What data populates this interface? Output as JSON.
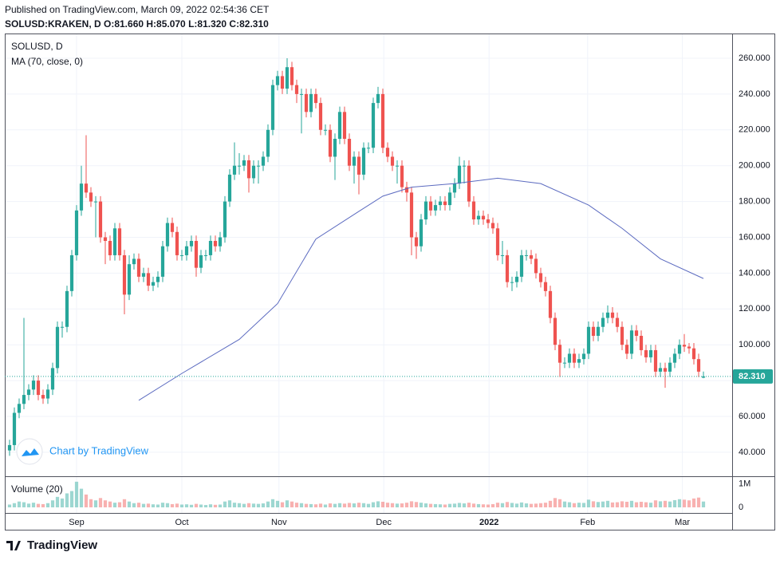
{
  "header": {
    "published": "Published on TradingView.com, March 09, 2022 02:54:36 CET",
    "quote": "SOLUSD:KRAKEN, D  O:81.660 H:85.070 L:81.320 C:82.310"
  },
  "footer": {
    "brand": "TradingView"
  },
  "watermark": "Chart by TradingView",
  "chart_data": {
    "type": "candlestick",
    "title": "SOLUSD, D",
    "up_color": "#26a69a",
    "down_color": "#ef5350",
    "open": [
      41,
      44,
      62,
      67,
      72,
      75,
      80,
      72,
      70,
      75,
      87,
      110,
      110,
      130,
      150,
      175,
      190,
      185,
      180,
      180,
      160,
      158,
      150,
      165,
      150,
      128,
      145,
      148,
      138,
      140,
      133,
      135,
      138,
      155,
      168,
      163,
      150,
      150,
      155,
      158,
      143,
      150,
      150,
      158,
      155,
      160,
      180,
      195,
      200,
      200,
      203,
      193,
      200,
      200,
      205,
      220,
      245,
      250,
      243,
      255,
      245,
      240,
      240,
      230,
      240,
      235,
      220,
      220,
      205,
      215,
      230,
      215,
      200,
      205,
      195,
      210,
      210,
      235,
      240,
      210,
      205,
      200,
      200,
      188,
      185,
      160,
      155,
      170,
      180,
      175,
      178,
      180,
      178,
      185,
      190,
      200,
      200,
      180,
      170,
      172,
      170,
      168,
      165,
      150,
      150,
      135,
      135,
      138,
      150,
      150,
      148,
      140,
      135,
      130,
      115,
      100,
      90,
      90,
      95,
      90,
      92,
      95,
      110,
      105,
      110,
      115,
      118,
      115,
      110,
      100,
      95,
      108,
      105,
      97,
      93,
      97,
      85,
      87,
      85,
      90,
      95,
      100,
      99,
      98,
      92,
      81.66
    ],
    "high": [
      47,
      65,
      70,
      115,
      78,
      83,
      83,
      75,
      78,
      90,
      113,
      113,
      133,
      153,
      178,
      200,
      217,
      188,
      183,
      183,
      163,
      161,
      168,
      168,
      153,
      150,
      151,
      151,
      143,
      143,
      138,
      141,
      158,
      171,
      171,
      166,
      153,
      158,
      161,
      161,
      153,
      153,
      161,
      161,
      163,
      183,
      198,
      213,
      207,
      206,
      206,
      203,
      203,
      208,
      223,
      248,
      253,
      253,
      260,
      258,
      248,
      243,
      243,
      243,
      243,
      238,
      223,
      223,
      218,
      233,
      233,
      218,
      208,
      208,
      213,
      213,
      238,
      244,
      243,
      213,
      208,
      203,
      203,
      191,
      188,
      163,
      173,
      183,
      183,
      181,
      183,
      183,
      188,
      193,
      205,
      203,
      203,
      183,
      175,
      175,
      173,
      171,
      168,
      158,
      153,
      138,
      141,
      153,
      153,
      153,
      151,
      143,
      138,
      133,
      118,
      103,
      93,
      98,
      98,
      95,
      98,
      113,
      113,
      113,
      118,
      122,
      121,
      118,
      113,
      103,
      111,
      111,
      108,
      100,
      100,
      100,
      90,
      90,
      93,
      98,
      103,
      106,
      101,
      101,
      95,
      85.07
    ],
    "low": [
      38,
      41,
      59,
      64,
      69,
      72,
      69,
      67,
      67,
      72,
      84,
      104,
      107,
      127,
      147,
      172,
      182,
      177,
      160,
      157,
      145,
      147,
      147,
      147,
      117,
      125,
      142,
      135,
      135,
      130,
      130,
      132,
      135,
      152,
      160,
      147,
      147,
      147,
      152,
      138,
      140,
      147,
      147,
      152,
      152,
      157,
      177,
      192,
      195,
      197,
      185,
      190,
      190,
      197,
      202,
      217,
      242,
      240,
      240,
      242,
      235,
      218,
      227,
      227,
      232,
      217,
      217,
      202,
      192,
      212,
      212,
      197,
      190,
      184,
      192,
      207,
      207,
      232,
      207,
      202,
      197,
      190,
      185,
      180,
      150,
      148,
      152,
      167,
      172,
      172,
      175,
      175,
      175,
      182,
      187,
      190,
      177,
      167,
      167,
      167,
      165,
      162,
      147,
      145,
      132,
      130,
      132,
      135,
      147,
      145,
      137,
      132,
      127,
      112,
      97,
      82,
      87,
      87,
      87,
      87,
      89,
      92,
      102,
      102,
      107,
      112,
      112,
      107,
      97,
      92,
      92,
      102,
      94,
      90,
      90,
      82,
      82,
      76,
      82,
      87,
      92,
      96,
      95,
      89,
      82,
      81.32
    ],
    "close": [
      44,
      62,
      67,
      72,
      75,
      80,
      72,
      70,
      75,
      87,
      110,
      110,
      130,
      150,
      175,
      190,
      185,
      180,
      180,
      160,
      158,
      150,
      165,
      150,
      128,
      145,
      148,
      138,
      140,
      133,
      135,
      138,
      155,
      168,
      163,
      150,
      150,
      155,
      158,
      143,
      150,
      150,
      158,
      155,
      160,
      180,
      195,
      200,
      200,
      203,
      193,
      200,
      200,
      205,
      220,
      245,
      250,
      243,
      255,
      245,
      240,
      240,
      230,
      240,
      235,
      220,
      220,
      205,
      215,
      230,
      215,
      200,
      205,
      195,
      210,
      210,
      235,
      240,
      210,
      205,
      200,
      200,
      188,
      185,
      160,
      155,
      170,
      180,
      175,
      178,
      180,
      178,
      185,
      190,
      200,
      200,
      180,
      170,
      172,
      170,
      168,
      165,
      150,
      150,
      135,
      135,
      138,
      150,
      150,
      148,
      140,
      135,
      130,
      115,
      100,
      90,
      90,
      95,
      90,
      92,
      95,
      110,
      105,
      110,
      115,
      118,
      115,
      110,
      100,
      95,
      108,
      105,
      97,
      93,
      97,
      85,
      87,
      85,
      90,
      95,
      100,
      99,
      98,
      92,
      85,
      82.31
    ],
    "volume_title": "Volume (20)",
    "volume": [
      120000,
      180000,
      250000,
      220000,
      160000,
      200000,
      150000,
      140000,
      180000,
      300000,
      450000,
      380000,
      600000,
      700000,
      1100000,
      800000,
      550000,
      350000,
      300000,
      400000,
      300000,
      250000,
      200000,
      220000,
      350000,
      250000,
      180000,
      200000,
      150000,
      160000,
      130000,
      120000,
      200000,
      180000,
      140000,
      160000,
      120000,
      130000,
      110000,
      150000,
      120000,
      100000,
      130000,
      110000,
      120000,
      250000,
      300000,
      200000,
      180000,
      150000,
      180000,
      160000,
      150000,
      170000,
      250000,
      350000,
      280000,
      220000,
      300000,
      250000,
      200000,
      180000,
      150000,
      140000,
      130000,
      160000,
      120000,
      170000,
      150000,
      180000,
      160000,
      190000,
      170000,
      200000,
      180000,
      150000,
      220000,
      260000,
      240000,
      200000,
      180000,
      160000,
      170000,
      200000,
      260000,
      230000,
      200000,
      170000,
      150000,
      140000,
      130000,
      120000,
      150000,
      160000,
      190000,
      170000,
      200000,
      160000,
      140000,
      130000,
      120000,
      140000,
      200000,
      180000,
      230000,
      190000,
      160000,
      210000,
      170000,
      150000,
      160000,
      180000,
      200000,
      280000,
      400000,
      350000,
      250000,
      220000,
      180000,
      200000,
      190000,
      330000,
      260000,
      230000,
      250000,
      280000,
      210000,
      220000,
      260000,
      240000,
      280000,
      220000,
      240000,
      220000,
      200000,
      300000,
      260000,
      280000,
      250000,
      310000,
      350000,
      330000,
      300000,
      380000,
      420000,
      250000
    ],
    "vlim": [
      0,
      1300000
    ],
    "vticks": [
      {
        "value": 1000000,
        "label": "1M"
      },
      0
    ],
    "ma": {
      "name": "MA (70, close, 0)",
      "color": "#5c6bc0",
      "x": [
        27,
        36,
        48,
        56,
        64,
        73,
        78,
        84,
        93,
        102,
        111,
        121,
        128,
        136,
        145
      ],
      "values": [
        69,
        84,
        103,
        123,
        159,
        174.5,
        183,
        188,
        190,
        193,
        190,
        178,
        165,
        148,
        137
      ]
    },
    "last_price": 82.31,
    "last_price_label": "82.310",
    "xlim": [
      -1,
      151
    ],
    "ylim": [
      26.6,
      273.8
    ],
    "yticks": [
      {
        "value": 40,
        "label": "40.000"
      },
      {
        "value": 60,
        "label": "60.000"
      },
      {
        "value": 80,
        "label": "80.000"
      },
      {
        "value": 100,
        "label": "100.000"
      },
      {
        "value": 120,
        "label": "120.000"
      },
      {
        "value": 140,
        "label": "140.000"
      },
      {
        "value": 160,
        "label": "160.000"
      },
      {
        "value": 180,
        "label": "180.000"
      },
      {
        "value": 200,
        "label": "200.000"
      },
      {
        "value": 220,
        "label": "220.000"
      },
      {
        "value": 240,
        "label": "240.000"
      },
      {
        "value": 260,
        "label": "260.000"
      }
    ],
    "xticks": [
      {
        "value": 14,
        "label": "Sep"
      },
      {
        "value": 36,
        "label": "Oct"
      },
      {
        "value": 56.3,
        "label": "Nov"
      },
      {
        "value": 78.2,
        "label": "Dec"
      },
      {
        "value": 100.2,
        "label": "2022",
        "bold": true
      },
      {
        "value": 120.8,
        "label": "Feb"
      },
      {
        "value": 140.6,
        "label": "Mar"
      }
    ],
    "grid": true
  }
}
